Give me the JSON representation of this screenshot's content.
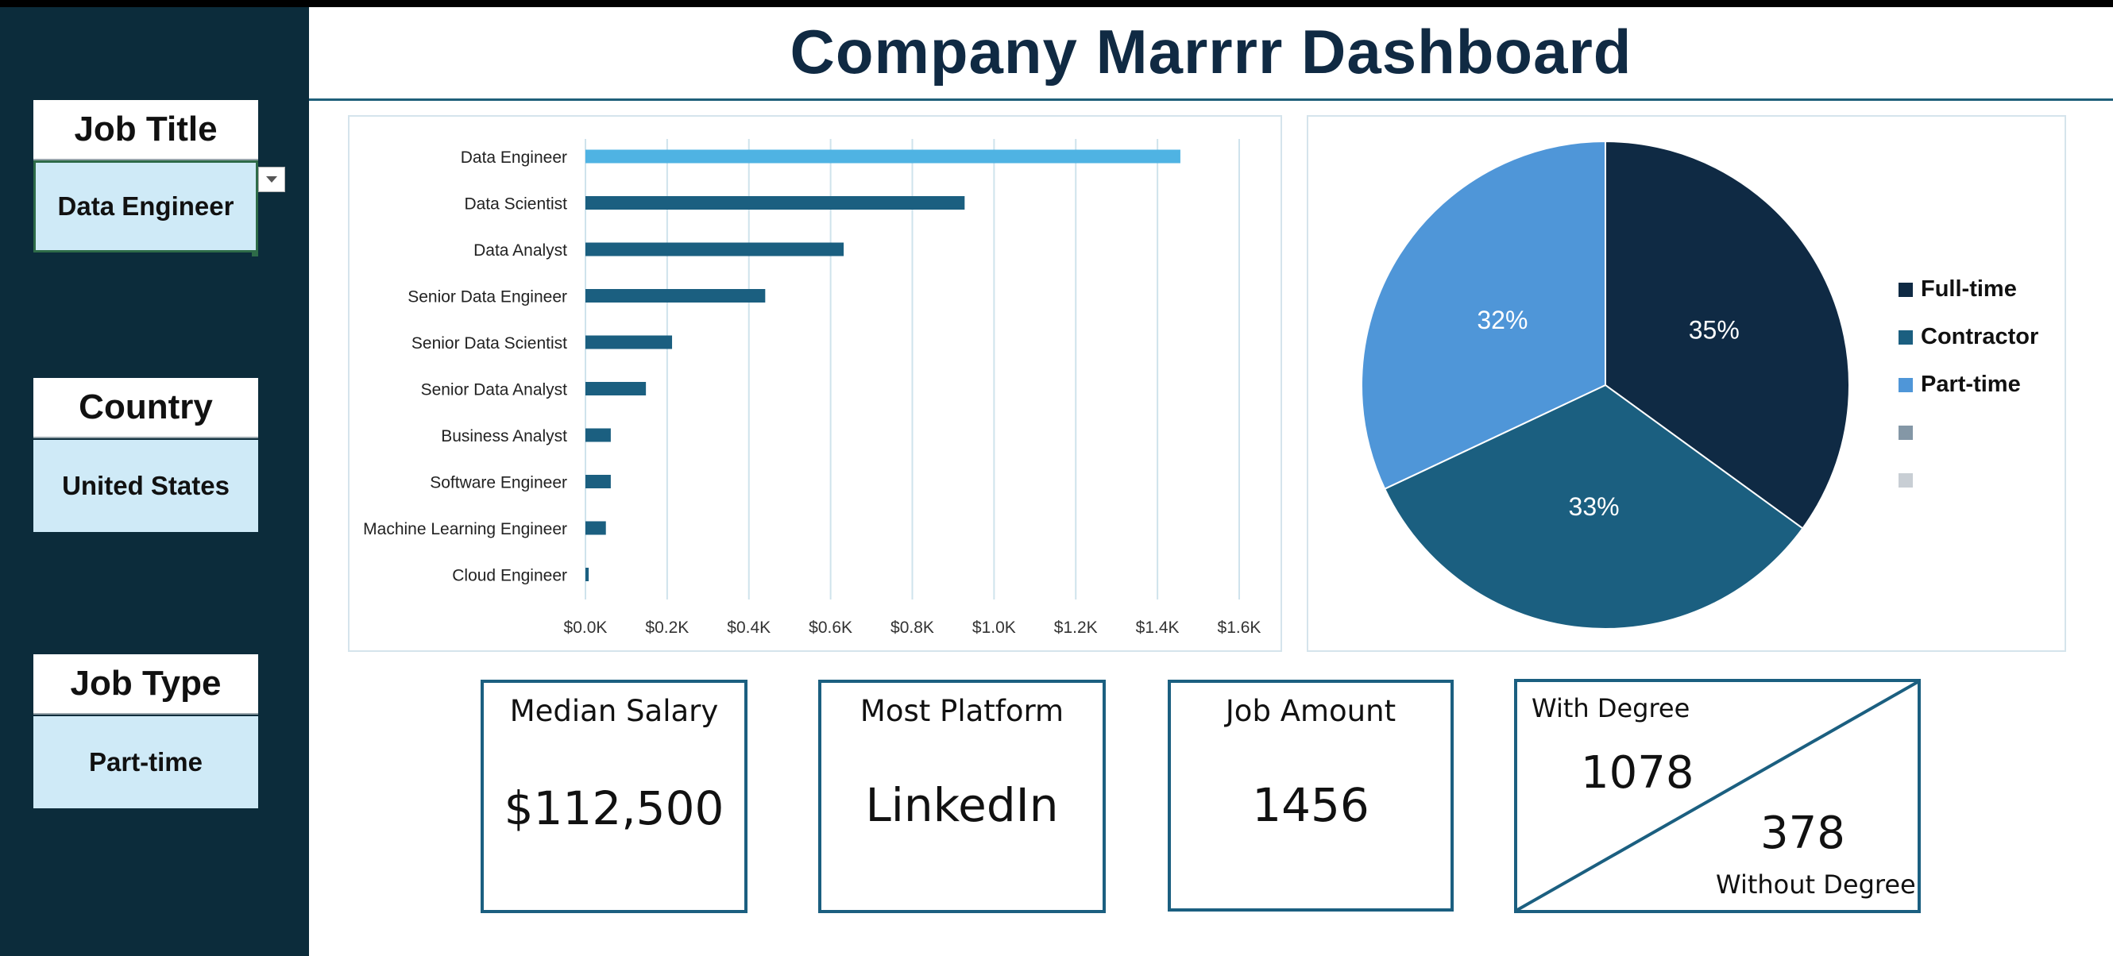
{
  "dashboard": {
    "title": "Company Marrrr Dashboard"
  },
  "slicers": {
    "job_title": {
      "label": "Job Title",
      "value": "Data Engineer"
    },
    "country": {
      "label": "Country",
      "value": "United States"
    },
    "job_type": {
      "label": "Job Type",
      "value": "Part-time"
    }
  },
  "chart_data": [
    {
      "type": "bar",
      "orientation": "horizontal",
      "categories": [
        "Data Engineer",
        "Data Scientist",
        "Data Analyst",
        "Senior Data Engineer",
        "Senior Data Scientist",
        "Senior Data Analyst",
        "Business Analyst",
        "Software Engineer",
        "Machine Learning Engineer",
        "Cloud Engineer"
      ],
      "values": [
        1456,
        928,
        632,
        440,
        212,
        148,
        62,
        62,
        50,
        8
      ],
      "highlight_category": "Data Engineer",
      "xlim": [
        0,
        1600
      ],
      "xticks": [
        "$0.0K",
        "$0.2K",
        "$0.4K",
        "$0.6K",
        "$0.8K",
        "$1.0K",
        "$1.2K",
        "$1.4K",
        "$1.6K"
      ],
      "grid": true,
      "colors": {
        "bar": "#1b5f80",
        "highlight": "#4fb3e3",
        "grid": "#cfe3ec"
      }
    },
    {
      "type": "pie",
      "labels": [
        "Full-time",
        "Contractor",
        "Part-time"
      ],
      "values": [
        35,
        33,
        32
      ],
      "value_labels": [
        "35%",
        "33%",
        "32%"
      ],
      "colors": [
        "#0f2a44",
        "#1b5f80",
        "#4f96d8"
      ],
      "legend_position": "right",
      "legend_extra_swatch_colors": [
        "#8497a6",
        "#c8ced4"
      ]
    }
  ],
  "kpis": {
    "median_salary": {
      "label": "Median Salary",
      "value": "$112,500"
    },
    "most_platform": {
      "label": "Most Platform",
      "value": "LinkedIn"
    },
    "job_amount": {
      "label": "Job Amount",
      "value": "1456"
    },
    "degree": {
      "with_label": "With Degree",
      "with_value": "1078",
      "without_label": "Without Degree",
      "without_value": "378"
    }
  }
}
